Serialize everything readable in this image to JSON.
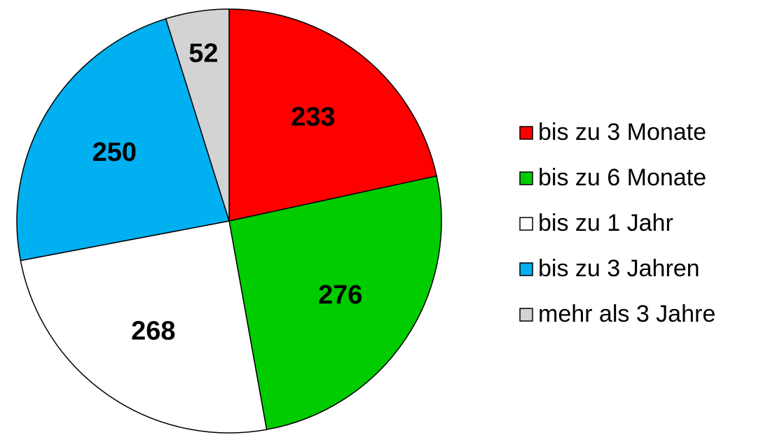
{
  "chart_data": {
    "type": "pie",
    "categories": [
      "bis zu 3 Monate",
      "bis zu 6 Monate",
      "bis zu 1 Jahr",
      "bis zu 3 Jahren",
      "mehr als 3 Jahre"
    ],
    "values": [
      233,
      276,
      268,
      250,
      52
    ],
    "colors": [
      "#ff0000",
      "#00cc00",
      "#ffffff",
      "#00b0f0",
      "#d3d3d3"
    ],
    "legend": "right"
  }
}
